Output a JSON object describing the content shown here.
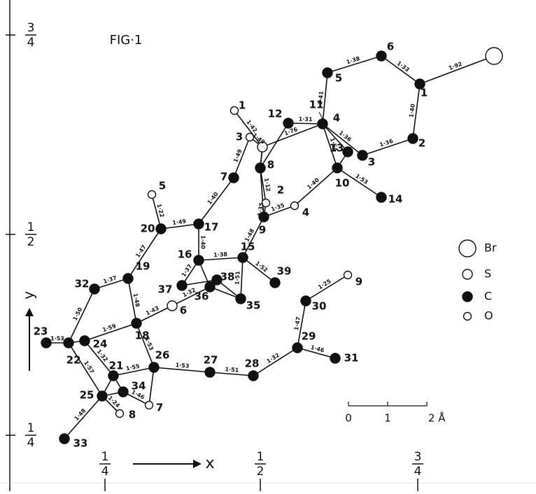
{
  "figure": {
    "title": "FIG·1",
    "x_axis_label": "x",
    "y_axis_label": "y",
    "left_ticks": [
      {
        "numerator": "3",
        "denominator": "4"
      },
      {
        "numerator": "1",
        "denominator": "2"
      },
      {
        "numerator": "1",
        "denominator": "4"
      }
    ],
    "bottom_ticks": [
      {
        "numerator": "1",
        "denominator": "4"
      },
      {
        "numerator": "1",
        "denominator": "2"
      },
      {
        "numerator": "3",
        "denominator": "4"
      }
    ],
    "atom_labels": [
      "1",
      "6",
      "5",
      "4",
      "2",
      "3",
      "13",
      "10",
      "14",
      "12",
      "1",
      "3",
      "8",
      "7",
      "2",
      "4",
      "9",
      "5",
      "20",
      "17",
      "16",
      "15",
      "39",
      "38",
      "36",
      "37",
      "35",
      "6",
      "19",
      "32",
      "18",
      "24",
      "22",
      "23",
      "21",
      "26",
      "27",
      "28",
      "29",
      "30",
      "9",
      "31",
      "34",
      "25",
      "7",
      "8",
      "33"
    ],
    "extra_label": "11",
    "bond_lengths": [
      "1·92",
      "1·33",
      "1·38",
      "1·41",
      "1·40",
      "1·36",
      "1·36",
      "1·31",
      "1·54",
      "1·53",
      "1·40",
      "1·35",
      "1·76",
      "1·42",
      "1·49",
      "1·12",
      "1·35",
      "1·49",
      "1·40",
      "1·48",
      "1·49",
      "1·22",
      "1·40",
      "1·38",
      "1·52",
      "1·51",
      "1·37",
      "1·32",
      "1·47",
      "1·37",
      "1·48",
      "1·50",
      "1·59",
      "1·43",
      "1·53",
      "1·53",
      "1·57",
      "1·32",
      "1·55",
      "1·46",
      "1·53",
      "1·51",
      "1·32",
      "1·47",
      "1·25",
      "1·46",
      "1·48",
      "1·24"
    ],
    "legend": [
      "Br",
      "S",
      "C",
      "O"
    ],
    "scale_labels": [
      "0",
      "1",
      "2 Å"
    ]
  }
}
